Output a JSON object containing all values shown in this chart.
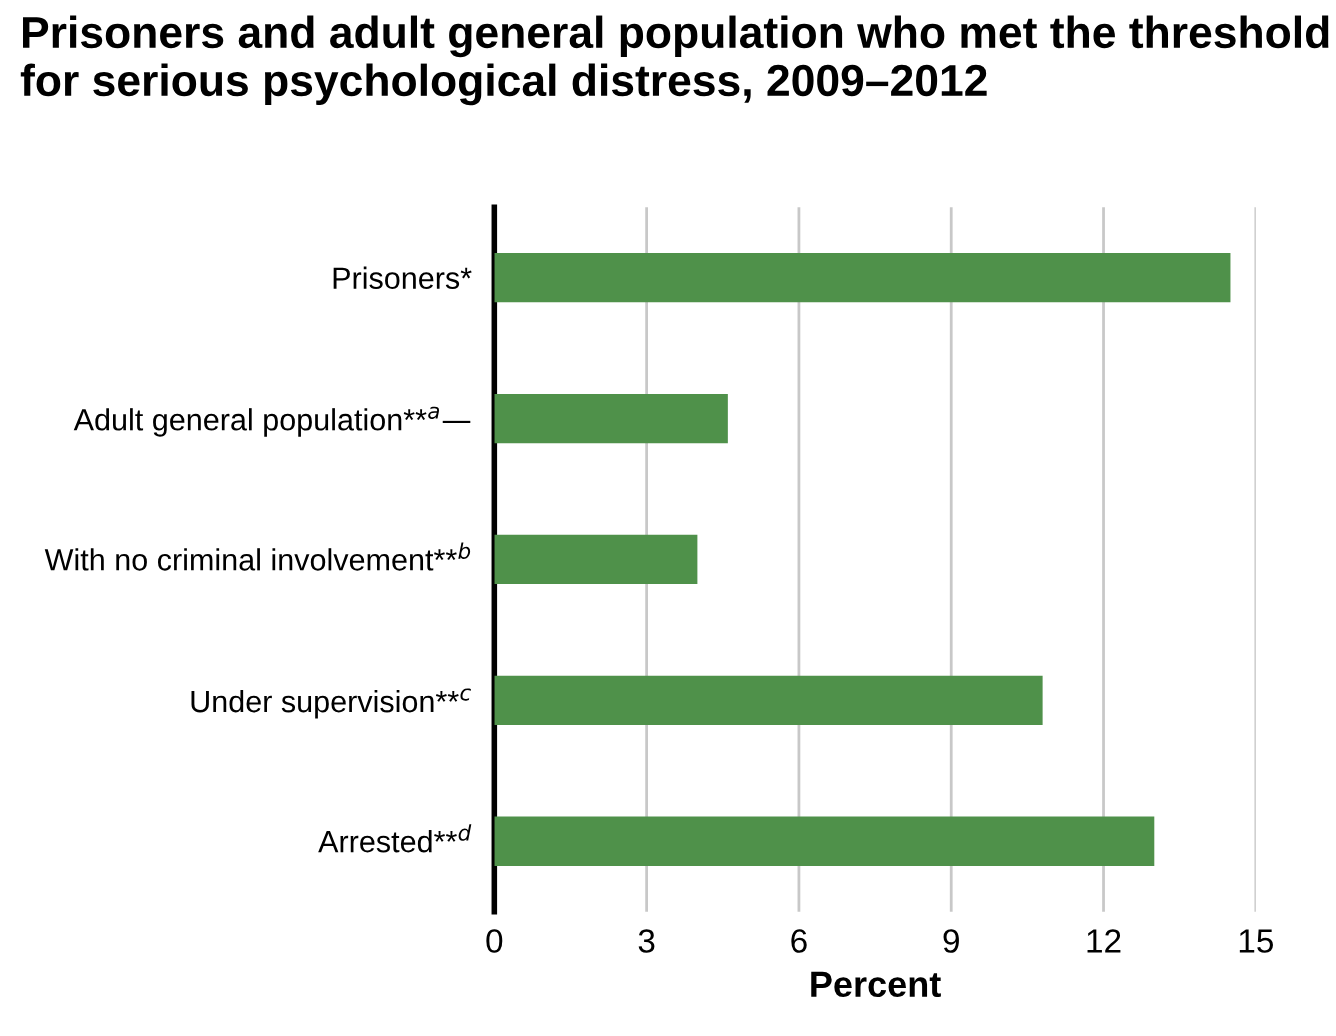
{
  "chart_data": {
    "type": "bar",
    "orientation": "horizontal",
    "title": "Prisoners and adult general population who met the threshold for serious psychological distress, 2009–2012",
    "categories": [
      "Prisoners*",
      "Adult general population**$^{a}$—",
      "With no criminal involvement**$^{b}$",
      "Under supervision**$^{c}$",
      "Arrested**$^{d}$"
    ],
    "values": [
      14.5,
      4.6,
      4.0,
      10.8,
      13.0
    ],
    "color": "#4f914a",
    "xlabel": "Percent",
    "xlim": [
      0,
      15
    ],
    "xticks": [
      0,
      3,
      6,
      9,
      12,
      15
    ],
    "grid": "x"
  }
}
